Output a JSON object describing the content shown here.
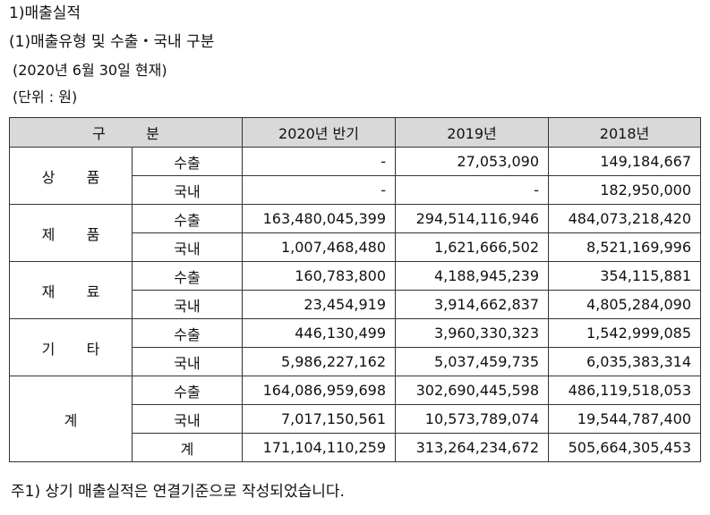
{
  "heading": {
    "title": "1)매출실적",
    "subtitle": "(1)매출유형 및 수출・국내 구분",
    "as_of": "(2020년 6월 30일 현재)",
    "unit": "(단위 : 원)"
  },
  "table": {
    "header": {
      "division_a": "구",
      "division_b": "분",
      "col1": "2020년 반기",
      "col2": "2019년",
      "col3": "2018년"
    },
    "groups": [
      {
        "label_a": "상",
        "label_b": "품",
        "rows": [
          {
            "type": "수출",
            "v1": "-",
            "v2": "27,053,090",
            "v3": "149,184,667"
          },
          {
            "type": "국내",
            "v1": "-",
            "v2": "-",
            "v3": "182,950,000"
          }
        ]
      },
      {
        "label_a": "제",
        "label_b": "품",
        "rows": [
          {
            "type": "수출",
            "v1": "163,480,045,399",
            "v2": "294,514,116,946",
            "v3": "484,073,218,420"
          },
          {
            "type": "국내",
            "v1": "1,007,468,480",
            "v2": "1,621,666,502",
            "v3": "8,521,169,996"
          }
        ]
      },
      {
        "label_a": "재",
        "label_b": "료",
        "rows": [
          {
            "type": "수출",
            "v1": "160,783,800",
            "v2": "4,188,945,239",
            "v3": "354,115,881"
          },
          {
            "type": "국내",
            "v1": "23,454,919",
            "v2": "3,914,662,837",
            "v3": "4,805,284,090"
          }
        ]
      },
      {
        "label_a": "기",
        "label_b": "타",
        "rows": [
          {
            "type": "수출",
            "v1": "446,130,499",
            "v2": "3,960,330,323",
            "v3": "1,542,999,085"
          },
          {
            "type": "국내",
            "v1": "5,986,227,162",
            "v2": "5,037,459,735",
            "v3": "6,035,383,314"
          }
        ]
      },
      {
        "label_a": "계",
        "label_b": "",
        "rows": [
          {
            "type": "수출",
            "v1": "164,086,959,698",
            "v2": "302,690,445,598",
            "v3": "486,119,518,053"
          },
          {
            "type": "국내",
            "v1": "7,017,150,561",
            "v2": "10,573,789,074",
            "v3": "19,544,787,400"
          },
          {
            "type": "계",
            "v1": "171,104,110,259",
            "v2": "313,264,234,672",
            "v3": "505,664,305,453"
          }
        ]
      }
    ]
  },
  "footnote": "주1) 상기 매출실적은 연결기준으로 작성되었습니다."
}
